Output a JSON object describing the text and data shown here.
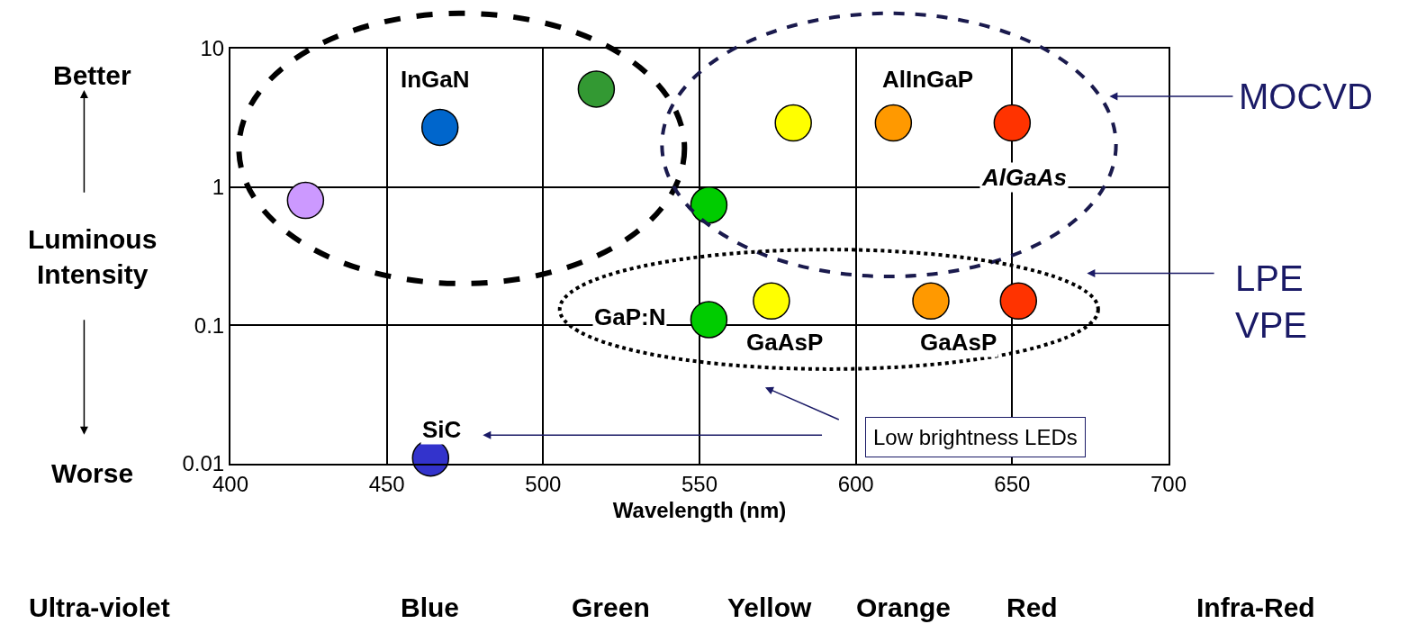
{
  "chart_data": {
    "type": "scatter",
    "xlabel": "Wavelength (nm)",
    "ylabel": "Luminous\nIntensity",
    "x": [
      424,
      467,
      517,
      580,
      612,
      650,
      553,
      553,
      573,
      624,
      652,
      464
    ],
    "values": [
      0.8,
      2.7,
      5.1,
      2.9,
      2.9,
      2.9,
      0.74,
      0.11,
      0.15,
      0.15,
      0.15,
      0.011
    ],
    "colors": [
      "#cc99ff",
      "#0066cc",
      "#339933",
      "#ffff00",
      "#ff9900",
      "#ff3300",
      "#00cc00",
      "#00cc00",
      "#ffff00",
      "#ff9900",
      "#ff3300",
      "#3333cc"
    ],
    "xlim": [
      400,
      700
    ],
    "xticks": [
      400,
      450,
      500,
      550,
      600,
      650,
      700
    ],
    "ylim": [
      0.01,
      10
    ],
    "yticks": [
      0.01,
      0.1,
      1,
      10
    ],
    "log": "y",
    "grid": true,
    "marker": "circle",
    "annotations": [
      "InGaN",
      "AlInGaP",
      "AlGaAs",
      "GaP:N",
      "GaAsP",
      "GaAsP",
      "SiC",
      "Better",
      "Worse",
      "MOCVD",
      "LPE\nVPE",
      "Low brightness LEDs",
      "Ultra-violet",
      "Blue",
      "Green",
      "Yellow",
      "Orange",
      "Red",
      "Infra-Red"
    ]
  }
}
